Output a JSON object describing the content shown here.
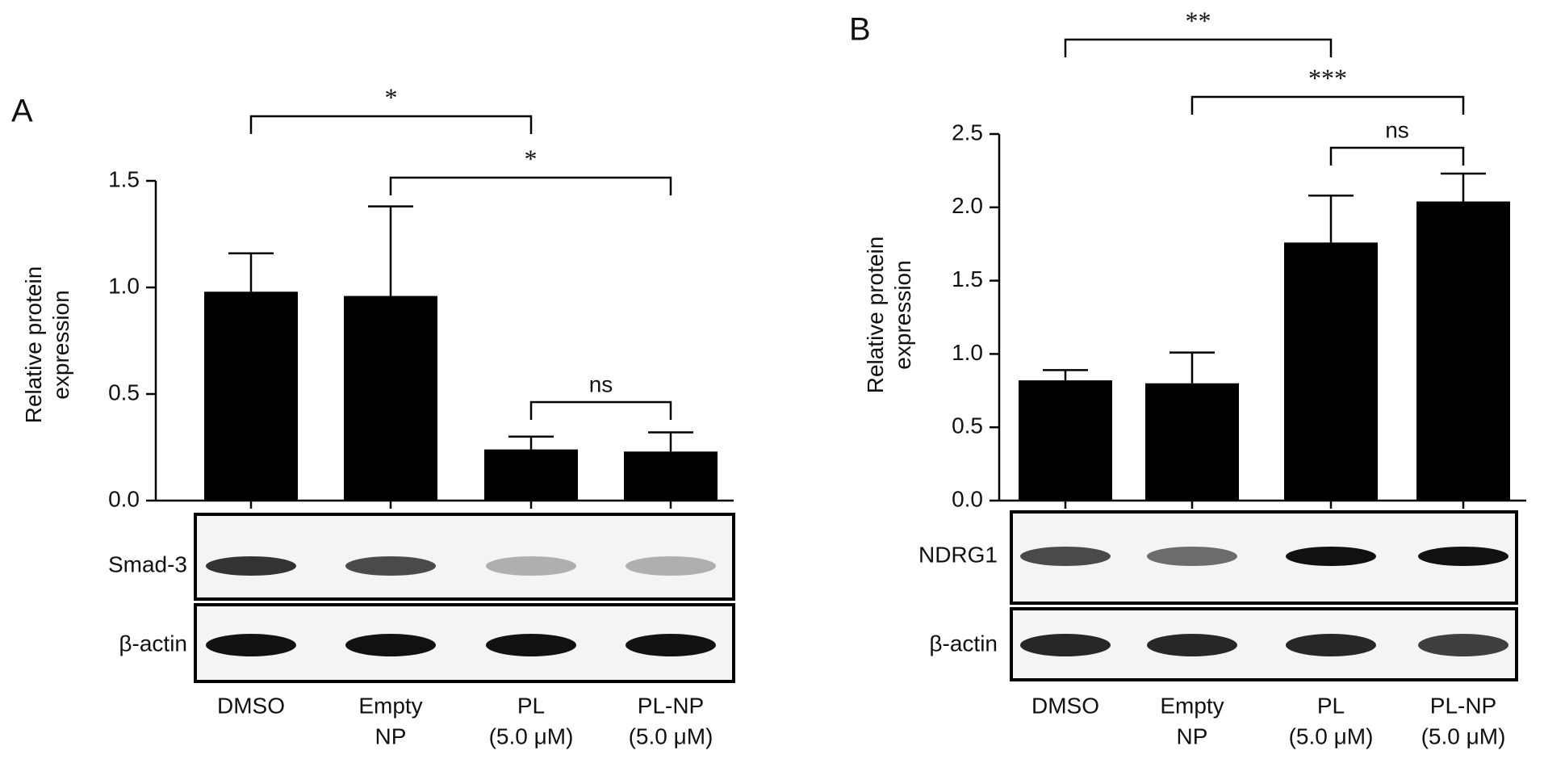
{
  "chart_data": [
    {
      "type": "bar",
      "panel": "A",
      "y_label": [
        "Relative protein",
        "expression"
      ],
      "categories": [
        [
          "DMSO"
        ],
        [
          "Empty",
          "NP"
        ],
        [
          "PL",
          "(5.0 μM)"
        ],
        [
          "PL-NP",
          "(5.0 μM)"
        ]
      ],
      "values": [
        0.98,
        0.96,
        0.24,
        0.23
      ],
      "errors": [
        0.18,
        0.42,
        0.06,
        0.09
      ],
      "color": "#000000",
      "ylim": [
        0,
        1.5
      ],
      "yticks": [
        {
          "value": 0,
          "label": "0.0"
        },
        0.5,
        {
          "value": 1,
          "label": "1.0"
        },
        1.5
      ],
      "comparisons": [
        {
          "from": 0,
          "to": 2,
          "label": "*"
        },
        {
          "from": 1,
          "to": 3,
          "label": "*"
        },
        {
          "from": 2,
          "to": 3,
          "label": "ns"
        }
      ],
      "blots": [
        "Smad-3",
        "β-actin"
      ]
    },
    {
      "type": "bar",
      "panel": "B",
      "y_label": [
        "Relative protein",
        "expression"
      ],
      "categories": [
        [
          "DMSO"
        ],
        [
          "Empty",
          "NP"
        ],
        [
          "PL",
          "(5.0 μM)"
        ],
        [
          "PL-NP",
          "(5.0 μM)"
        ]
      ],
      "values": [
        0.82,
        0.8,
        1.76,
        2.04
      ],
      "errors": [
        0.07,
        0.21,
        0.32,
        0.19
      ],
      "color": "#000000",
      "ylim": [
        0,
        2.5
      ],
      "yticks": [
        {
          "value": 0,
          "label": "0.0"
        },
        0.5,
        {
          "value": 1,
          "label": "1.0"
        },
        1.5,
        {
          "value": 2,
          "label": "2.0"
        },
        2.5
      ],
      "comparisons": [
        {
          "from": 0,
          "to": 2,
          "label": "**"
        },
        {
          "from": 1,
          "to": 3,
          "label": "***"
        },
        {
          "from": 2,
          "to": 3,
          "label": "ns"
        }
      ],
      "blots": [
        "NDRG1",
        "β-actin"
      ]
    }
  ]
}
